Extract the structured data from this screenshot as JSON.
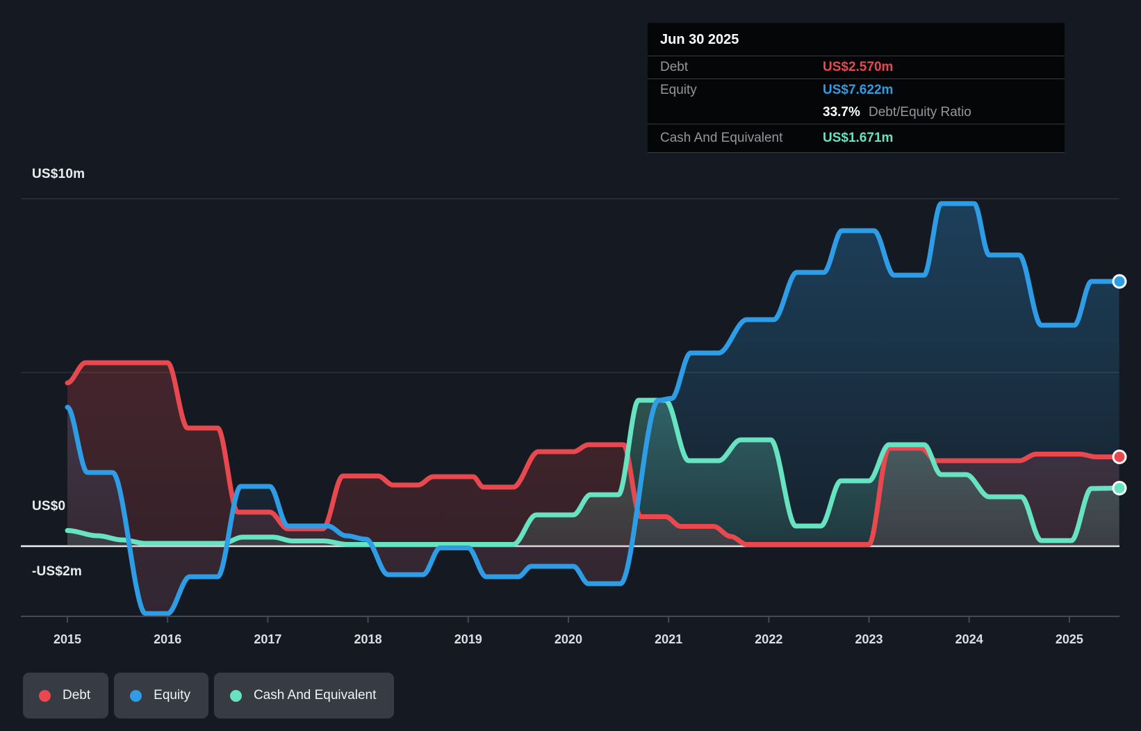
{
  "tooltip": {
    "date": "Jun 30 2025",
    "rows": [
      {
        "key": "debt",
        "label": "Debt",
        "value": "US$2.570m"
      },
      {
        "key": "equity",
        "label": "Equity",
        "value": "US$7.622m"
      },
      {
        "key": "cash",
        "label": "Cash And Equivalent",
        "value": "US$1.671m"
      }
    ],
    "ratio_value": "33.7%",
    "ratio_label": "Debt/Equity Ratio"
  },
  "axes": {
    "y": [
      {
        "label": "US$10m",
        "value": 10
      },
      {
        "label": "US$0",
        "value": 0
      },
      {
        "label": "-US$2m",
        "value": -2
      }
    ],
    "x": [
      "2015",
      "2016",
      "2017",
      "2018",
      "2019",
      "2020",
      "2021",
      "2022",
      "2023",
      "2024",
      "2025"
    ]
  },
  "legend": [
    {
      "label": "Debt",
      "color": "#e7494f"
    },
    {
      "label": "Equity",
      "color": "#2f9de6"
    },
    {
      "label": "Cash And Equivalent",
      "color": "#68e3c1"
    }
  ],
  "colors": {
    "background": "#151a22",
    "gridline": "#2b313a",
    "zero_line": "#eef1f4",
    "axis_line": "#454b54",
    "debt": "#e7494f",
    "equity": "#2f9de6",
    "cash": "#68e3c1",
    "tooltip_bg": "#050607",
    "tooltip_label": "#94979c",
    "legend_bg": "#363b44"
  },
  "chart_data": {
    "type": "area",
    "title": "Debt to Equity History",
    "x_unit": "year",
    "y_unit": "US$ millions",
    "x_range": [
      2015.0,
      2025.5
    ],
    "y_gridline_values": [
      10,
      5,
      0,
      -2
    ],
    "end_date": "Jun 30 2025",
    "end_values": {
      "debt": 2.57,
      "equity": 7.622,
      "cash": 1.671,
      "debt_equity_ratio_pct": 33.7
    },
    "series": [
      {
        "name": "Debt",
        "color": "#e7494f",
        "breakpoints": [
          [
            2015.0,
            4.7
          ],
          [
            2015.18,
            5.28
          ],
          [
            2016.0,
            5.28
          ],
          [
            2016.2,
            3.4
          ],
          [
            2016.5,
            3.4
          ],
          [
            2016.7,
            0.98
          ],
          [
            2017.02,
            0.98
          ],
          [
            2017.2,
            0.5
          ],
          [
            2017.55,
            0.5
          ],
          [
            2017.75,
            2.02
          ],
          [
            2018.1,
            2.02
          ],
          [
            2018.25,
            1.76
          ],
          [
            2018.5,
            1.76
          ],
          [
            2018.65,
            2.0
          ],
          [
            2019.05,
            2.0
          ],
          [
            2019.15,
            1.7
          ],
          [
            2019.45,
            1.7
          ],
          [
            2019.7,
            2.72
          ],
          [
            2020.05,
            2.72
          ],
          [
            2020.2,
            2.92
          ],
          [
            2020.55,
            2.92
          ],
          [
            2020.72,
            0.85
          ],
          [
            2020.97,
            0.85
          ],
          [
            2021.12,
            0.57
          ],
          [
            2021.45,
            0.57
          ],
          [
            2021.62,
            0.28
          ],
          [
            2021.78,
            0.05
          ],
          [
            2023.0,
            0.05
          ],
          [
            2023.2,
            2.82
          ],
          [
            2023.52,
            2.82
          ],
          [
            2023.67,
            2.46
          ],
          [
            2024.5,
            2.46
          ],
          [
            2024.67,
            2.65
          ],
          [
            2025.1,
            2.65
          ],
          [
            2025.27,
            2.57
          ],
          [
            2025.5,
            2.57
          ]
        ]
      },
      {
        "name": "Equity",
        "color": "#2f9de6",
        "breakpoints": [
          [
            2015.0,
            4.0
          ],
          [
            2015.2,
            2.12
          ],
          [
            2015.45,
            2.12
          ],
          [
            2015.78,
            -1.94
          ],
          [
            2016.0,
            -1.94
          ],
          [
            2016.22,
            -0.88
          ],
          [
            2016.5,
            -0.88
          ],
          [
            2016.73,
            1.72
          ],
          [
            2017.02,
            1.72
          ],
          [
            2017.2,
            0.58
          ],
          [
            2017.6,
            0.58
          ],
          [
            2017.78,
            0.3
          ],
          [
            2017.98,
            0.2
          ],
          [
            2018.2,
            -0.82
          ],
          [
            2018.55,
            -0.82
          ],
          [
            2018.72,
            -0.05
          ],
          [
            2019.0,
            -0.05
          ],
          [
            2019.18,
            -0.88
          ],
          [
            2019.5,
            -0.88
          ],
          [
            2019.63,
            -0.58
          ],
          [
            2020.05,
            -0.58
          ],
          [
            2020.2,
            -1.08
          ],
          [
            2020.52,
            -1.08
          ],
          [
            2020.9,
            4.2
          ],
          [
            2021.03,
            4.25
          ],
          [
            2021.22,
            5.56
          ],
          [
            2021.5,
            5.56
          ],
          [
            2021.78,
            6.52
          ],
          [
            2022.05,
            6.52
          ],
          [
            2022.28,
            7.88
          ],
          [
            2022.55,
            7.88
          ],
          [
            2022.73,
            9.08
          ],
          [
            2023.05,
            9.08
          ],
          [
            2023.25,
            7.8
          ],
          [
            2023.55,
            7.8
          ],
          [
            2023.72,
            9.86
          ],
          [
            2024.05,
            9.86
          ],
          [
            2024.2,
            8.38
          ],
          [
            2024.5,
            8.38
          ],
          [
            2024.72,
            6.36
          ],
          [
            2025.05,
            6.36
          ],
          [
            2025.22,
            7.62
          ],
          [
            2025.5,
            7.62
          ]
        ]
      },
      {
        "name": "Cash And Equivalent",
        "color": "#68e3c1",
        "breakpoints": [
          [
            2015.0,
            0.45
          ],
          [
            2015.3,
            0.3
          ],
          [
            2015.55,
            0.18
          ],
          [
            2015.78,
            0.08
          ],
          [
            2016.55,
            0.08
          ],
          [
            2016.75,
            0.26
          ],
          [
            2017.05,
            0.26
          ],
          [
            2017.25,
            0.15
          ],
          [
            2017.55,
            0.15
          ],
          [
            2017.8,
            0.05
          ],
          [
            2019.45,
            0.05
          ],
          [
            2019.68,
            0.9
          ],
          [
            2020.05,
            0.9
          ],
          [
            2020.22,
            1.48
          ],
          [
            2020.5,
            1.48
          ],
          [
            2020.7,
            4.2
          ],
          [
            2020.97,
            4.2
          ],
          [
            2021.2,
            2.46
          ],
          [
            2021.5,
            2.46
          ],
          [
            2021.72,
            3.06
          ],
          [
            2022.02,
            3.06
          ],
          [
            2022.27,
            0.58
          ],
          [
            2022.52,
            0.58
          ],
          [
            2022.72,
            1.88
          ],
          [
            2023.0,
            1.88
          ],
          [
            2023.2,
            2.92
          ],
          [
            2023.55,
            2.92
          ],
          [
            2023.72,
            2.06
          ],
          [
            2023.97,
            2.06
          ],
          [
            2024.2,
            1.42
          ],
          [
            2024.52,
            1.42
          ],
          [
            2024.72,
            0.16
          ],
          [
            2025.02,
            0.16
          ],
          [
            2025.22,
            1.66
          ],
          [
            2025.5,
            1.671
          ]
        ]
      }
    ]
  }
}
